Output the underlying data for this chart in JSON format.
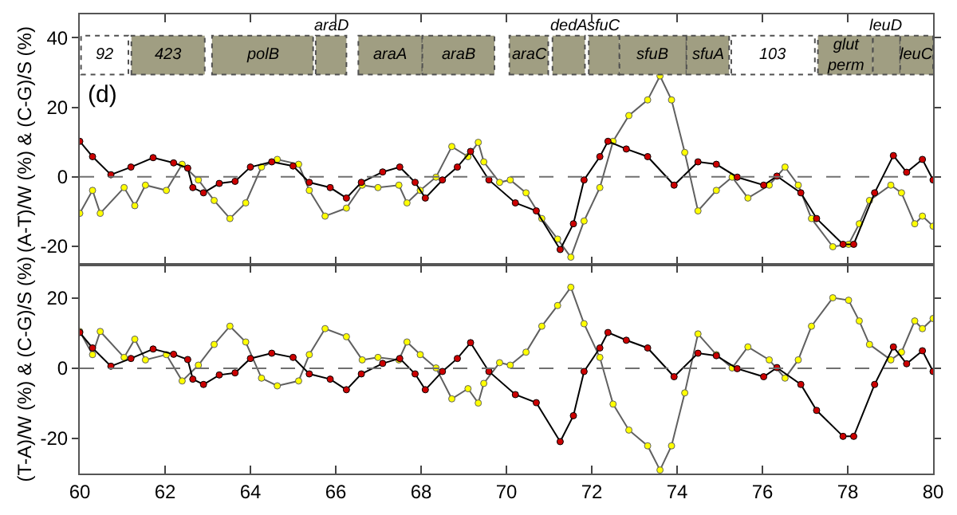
{
  "chart_data": [
    {
      "type": "line",
      "ylabel": "(A-T)/W (%) & (C-G)/S (%)",
      "xlim": [
        60,
        80
      ],
      "xticks": [
        60,
        62,
        64,
        66,
        68,
        70,
        72,
        74,
        76,
        78,
        80
      ],
      "ylim": [
        -25.3,
        46.7
      ],
      "yticks": [
        -20,
        0,
        20,
        40
      ],
      "tick_labels": "y",
      "marker": "circle",
      "ref_lines": [
        {
          "axis": "y",
          "value": 0,
          "color": "#707070",
          "line_style": "dashed"
        }
      ],
      "annotations": [
        "(d)"
      ],
      "bands": [
        {
          "axis": "x",
          "from": 60.03,
          "to": 61.14,
          "label": "92",
          "color": "#ffffff"
        },
        {
          "axis": "x",
          "from": 61.21,
          "to": 62.93,
          "label": "423",
          "color": "#a09e82"
        },
        {
          "axis": "x",
          "from": 63.1,
          "to": 65.47,
          "label": "polB",
          "color": "#a09e82"
        },
        {
          "axis": "x",
          "from": 65.53,
          "to": 66.25,
          "label": "araD",
          "color": "#a09e82"
        },
        {
          "axis": "x",
          "from": 66.53,
          "to": 68.03,
          "label": "araA",
          "color": "#a09e82"
        },
        {
          "axis": "x",
          "from": 68.03,
          "to": 69.72,
          "label": "araB",
          "color": "#a09e82"
        },
        {
          "axis": "x",
          "from": 70.07,
          "to": 70.98,
          "label": "araC",
          "color": "#a09e82"
        },
        {
          "axis": "x",
          "from": 71.08,
          "to": 71.84,
          "label": "dedA",
          "color": "#a09e82"
        },
        {
          "axis": "x",
          "from": 71.93,
          "to": 72.65,
          "label": "sfuC",
          "color": "#a09e82"
        },
        {
          "axis": "x",
          "from": 72.65,
          "to": 74.22,
          "label": "sfuB",
          "color": "#a09e82"
        },
        {
          "axis": "x",
          "from": 74.22,
          "to": 75.22,
          "label": "sfuA",
          "color": "#a09e82"
        },
        {
          "axis": "x",
          "from": 75.27,
          "to": 77.23,
          "label": "103",
          "color": "#ffffff"
        },
        {
          "axis": "x",
          "from": 77.3,
          "to": 78.59,
          "label": "glut perm",
          "color": "#a09e82"
        },
        {
          "axis": "x",
          "from": 78.59,
          "to": 79.23,
          "label": "leuD",
          "color": "#a09e82"
        },
        {
          "axis": "x",
          "from": 79.23,
          "to": 80,
          "label": "leuC",
          "color": "#a09e82"
        }
      ],
      "series": [
        {
          "color": "#ffff00",
          "x": [
            60.0,
            60.3,
            60.48,
            61.04,
            61.29,
            61.54,
            62.03,
            62.4,
            62.78,
            63.15,
            63.52,
            63.89,
            64.26,
            64.63,
            65.13,
            65.38,
            65.75,
            66.25,
            66.62,
            66.99,
            67.48,
            67.67,
            67.98,
            68.35,
            68.72,
            69.1,
            69.34,
            69.47,
            69.84,
            70.09,
            70.46,
            70.83,
            71.2,
            71.51,
            71.82,
            72.19,
            72.5,
            72.87,
            73.31,
            73.6,
            73.87,
            74.18,
            74.49,
            74.92,
            75.29,
            75.66,
            76.16,
            76.53,
            76.84,
            77.15,
            77.65,
            78.02,
            78.27,
            78.51,
            79.01,
            79.26,
            79.57,
            79.75,
            80.0
          ],
          "values": [
            -10.5,
            -3.9,
            -10.5,
            -3.1,
            -8.3,
            -2.4,
            -3.9,
            3.6,
            -0.9,
            -6.8,
            -12,
            -7.5,
            2.8,
            5,
            3.6,
            -3.9,
            -11.3,
            -9,
            -2.4,
            -3.1,
            -2.4,
            -7.5,
            -3.9,
            -0.1,
            8.7,
            5.8,
            9.9,
            4.3,
            -1.6,
            -0.9,
            -4.6,
            -12,
            -17.9,
            -23.1,
            -12.7,
            -3.1,
            10.2,
            17.6,
            22.1,
            29,
            22.1,
            7,
            -9.8,
            -3.9,
            -0.1,
            -6.1,
            -2.4,
            2.8,
            -2.4,
            -12,
            -20.1,
            -19.4,
            -13.5,
            -6.8,
            -2.4,
            -4.6,
            -13.5,
            -11.3,
            -14.2
          ]
        },
        {
          "color": "#cc0000",
          "x": [
            60.0,
            60.3,
            60.73,
            61.2,
            61.72,
            62.2,
            62.53,
            62.65,
            62.9,
            63.27,
            63.64,
            64.0,
            64.5,
            65.0,
            65.38,
            65.87,
            66.25,
            66.6,
            67.1,
            67.5,
            67.86,
            68.1,
            68.5,
            68.85,
            69.16,
            69.59,
            70.21,
            70.7,
            71.26,
            71.57,
            71.82,
            72.19,
            72.38,
            72.81,
            73.31,
            73.93,
            74.49,
            74.92,
            75.41,
            76.03,
            76.34,
            76.9,
            77.27,
            77.89,
            78.14,
            78.63,
            79.07,
            79.38,
            79.75,
            80.0
          ],
          "values": [
            10.2,
            5.8,
            0.6,
            2.8,
            5.5,
            4,
            2.5,
            -3.1,
            -4.6,
            -1.9,
            -1.3,
            2.8,
            4.3,
            3.1,
            -1.6,
            -3.1,
            -6.1,
            -1.6,
            1.4,
            2.8,
            -1.6,
            -6.1,
            -0.9,
            2.8,
            7.3,
            -0.9,
            -7.5,
            -9.8,
            -20.9,
            -13.5,
            -0.9,
            5.8,
            10.2,
            8,
            5.8,
            -2.4,
            4.3,
            3.6,
            -0.1,
            -2.4,
            0.2,
            -4.6,
            -12,
            -19.4,
            -19.4,
            -4.6,
            6.1,
            1.3,
            5,
            -0.9
          ]
        }
      ]
    },
    {
      "type": "line",
      "ylabel": "(T-A)/W (%) & (C-G)/S (%)",
      "xlim": [
        60,
        80
      ],
      "xticks": [
        60,
        62,
        64,
        66,
        68,
        70,
        72,
        74,
        76,
        78,
        80
      ],
      "ylim": [
        -30,
        29.5
      ],
      "yticks": [
        -20,
        0,
        20
      ],
      "marker": "circle",
      "ref_lines": [
        {
          "axis": "y",
          "value": 0,
          "color": "#707070",
          "line_style": "dashed"
        }
      ],
      "series": [
        {
          "color": "#ffff00",
          "x": [
            60.0,
            60.3,
            60.48,
            61.04,
            61.29,
            61.54,
            62.03,
            62.4,
            62.78,
            63.15,
            63.52,
            63.89,
            64.26,
            64.63,
            65.13,
            65.38,
            65.75,
            66.25,
            66.62,
            66.99,
            67.48,
            67.67,
            67.98,
            68.35,
            68.72,
            69.1,
            69.34,
            69.47,
            69.84,
            70.09,
            70.46,
            70.83,
            71.2,
            71.51,
            71.82,
            72.19,
            72.5,
            72.87,
            73.31,
            73.6,
            73.87,
            74.18,
            74.49,
            74.92,
            75.29,
            75.66,
            76.16,
            76.53,
            76.84,
            77.15,
            77.65,
            78.02,
            78.27,
            78.51,
            79.01,
            79.26,
            79.57,
            79.75,
            80.0
          ],
          "values": [
            10.5,
            3.9,
            10.5,
            3.1,
            8.3,
            2.4,
            3.9,
            -3.6,
            0.9,
            6.8,
            12,
            7.5,
            -2.8,
            -5,
            -3.6,
            3.9,
            11.3,
            9,
            2.4,
            3.1,
            2.4,
            7.5,
            3.9,
            0.1,
            -8.7,
            -5.8,
            -9.9,
            -4.3,
            1.6,
            0.9,
            4.6,
            12,
            17.9,
            23.1,
            12.7,
            3.1,
            -10.2,
            -17.6,
            -22.1,
            -29,
            -22.1,
            -7,
            9.8,
            3.9,
            0.1,
            6.1,
            2.4,
            -2.8,
            2.4,
            12,
            20.1,
            19.4,
            13.5,
            6.8,
            2.4,
            4.6,
            13.5,
            11.3,
            14.2
          ]
        },
        {
          "color": "#cc0000",
          "x": [
            60.0,
            60.3,
            60.73,
            61.2,
            61.72,
            62.2,
            62.53,
            62.65,
            62.9,
            63.27,
            63.64,
            64.0,
            64.5,
            65.0,
            65.38,
            65.87,
            66.25,
            66.6,
            67.1,
            67.5,
            67.86,
            68.1,
            68.5,
            68.85,
            69.16,
            69.59,
            70.21,
            70.7,
            71.26,
            71.57,
            71.82,
            72.19,
            72.38,
            72.81,
            73.31,
            73.93,
            74.49,
            74.92,
            75.41,
            76.03,
            76.34,
            76.9,
            77.27,
            77.89,
            78.14,
            78.63,
            79.07,
            79.38,
            79.75,
            80.0
          ],
          "values": [
            10.2,
            5.8,
            0.6,
            2.8,
            5.5,
            4,
            2.5,
            -3.1,
            -4.6,
            -1.9,
            -1.3,
            2.8,
            4.3,
            3.1,
            -1.6,
            -3.1,
            -6.1,
            -1.6,
            1.4,
            2.8,
            -1.6,
            -6.1,
            -0.9,
            2.8,
            7.3,
            -0.9,
            -7.5,
            -9.8,
            -20.9,
            -13.5,
            -0.9,
            5.8,
            10.2,
            8,
            5.8,
            -2.4,
            4.3,
            3.6,
            -0.1,
            -2.4,
            0.2,
            -4.6,
            -12,
            -19.4,
            -19.4,
            -4.6,
            6.1,
            1.3,
            5,
            -0.9
          ]
        }
      ]
    }
  ]
}
